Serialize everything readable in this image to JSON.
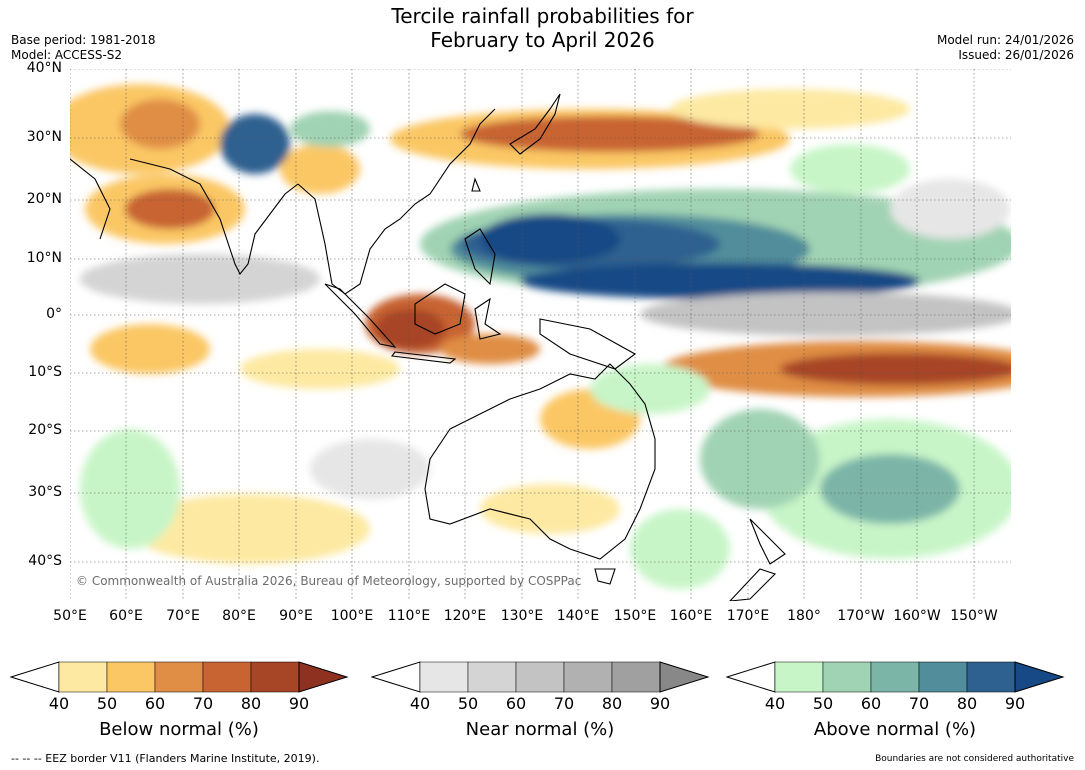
{
  "title_line1": "Tercile rainfall probabilities for",
  "title_line2": "February to April 2026",
  "base_period": "Base period: 1981-2018",
  "model": "Model: ACCESS-S2",
  "model_run": "Model run: 24/01/2026",
  "issued": "Issued: 26/01/2026",
  "lat_labels": [
    "40°N",
    "30°N",
    "20°N",
    "10°N",
    "0°",
    "10°S",
    "20°S",
    "30°S",
    "40°S"
  ],
  "lon_labels": [
    "50°E",
    "60°E",
    "70°E",
    "80°E",
    "90°E",
    "100°E",
    "110°E",
    "120°E",
    "130°E",
    "140°E",
    "150°E",
    "160°E",
    "170°E",
    "180°",
    "170°W",
    "160°W",
    "150°W"
  ],
  "copyright": "© Commonwealth of Australia 2026, Bureau of Meteorology, supported by COSPPac",
  "colorbars": [
    {
      "label": "Below normal (%)",
      "ticks": [
        "40",
        "50",
        "60",
        "70",
        "80",
        "90"
      ],
      "colors": [
        "#ffffff",
        "#fde9a1",
        "#fbc765",
        "#e08e45",
        "#c86432",
        "#a74527",
        "#8f3120"
      ]
    },
    {
      "label": "Near normal (%)",
      "ticks": [
        "40",
        "50",
        "60",
        "70",
        "80",
        "90"
      ],
      "colors": [
        "#ffffff",
        "#e6e6e6",
        "#d4d4d4",
        "#c3c3c3",
        "#b1b1b1",
        "#a0a0a0",
        "#888888"
      ]
    },
    {
      "label": "Above normal (%)",
      "ticks": [
        "40",
        "50",
        "60",
        "70",
        "80",
        "90"
      ],
      "colors": [
        "#ffffff",
        "#c8f5c8",
        "#a0d3b3",
        "#7bb5a8",
        "#518d9b",
        "#2e6190",
        "#164985"
      ]
    }
  ],
  "eez_note": "--  --  -- EEZ border V11 (Flanders Marine Institute, 2019).",
  "boundary_note": "Boundaries are not considered authoritative"
}
